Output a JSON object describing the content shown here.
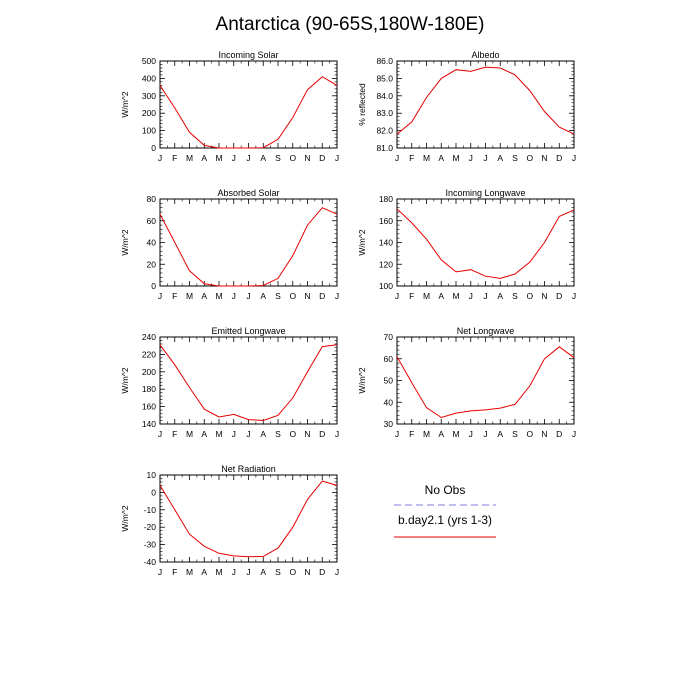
{
  "title": "Antarctica (90-65S,180W-180E)",
  "month_labels": [
    "J",
    "F",
    "M",
    "A",
    "M",
    "J",
    "J",
    "A",
    "S",
    "O",
    "N",
    "D",
    "J"
  ],
  "legend": {
    "entries": [
      {
        "label": "No Obs",
        "color": "#7b7bdc",
        "dash": true
      },
      {
        "label": "b.day2.1 (yrs 1-3)",
        "color": "#e60000",
        "dash": false
      }
    ]
  },
  "chart_data": [
    {
      "type": "line",
      "title": "Incoming Solar",
      "ylabel": "W/m^2",
      "ylim": [
        0,
        500
      ],
      "yticks": [
        0,
        100,
        200,
        300,
        400,
        500
      ],
      "ytick_labels": [
        "0",
        "100",
        "200",
        "300",
        "400",
        "500"
      ],
      "series": [
        {
          "color": "#e60000",
          "values": [
            360,
            230,
            90,
            15,
            0,
            0,
            0,
            2,
            50,
            175,
            335,
            410,
            360
          ]
        }
      ]
    },
    {
      "type": "line",
      "title": "Albedo",
      "ylabel": "% reflected",
      "ylim": [
        81,
        86
      ],
      "yticks": [
        81,
        82,
        83,
        84,
        85,
        86
      ],
      "ytick_labels": [
        "81.0",
        "82.0",
        "83.0",
        "84.0",
        "85.0",
        "86.0"
      ],
      "series": [
        {
          "color": "#e60000",
          "values": [
            81.8,
            82.5,
            83.9,
            85.0,
            85.5,
            85.4,
            85.65,
            85.6,
            85.2,
            84.3,
            83.1,
            82.2,
            81.8
          ]
        }
      ]
    },
    {
      "type": "line",
      "title": "Absorbed Solar",
      "ylabel": "W/m^2",
      "ylim": [
        0,
        80
      ],
      "yticks": [
        0,
        20,
        40,
        60,
        80
      ],
      "ytick_labels": [
        "0",
        "20",
        "40",
        "60",
        "80"
      ],
      "series": [
        {
          "color": "#e60000",
          "values": [
            66,
            40,
            14,
            2,
            0,
            0,
            0,
            0.5,
            7,
            28,
            56,
            72,
            66
          ]
        }
      ]
    },
    {
      "type": "line",
      "title": "Incoming Longwave",
      "ylabel": "W/m^2",
      "ylim": [
        100,
        180
      ],
      "yticks": [
        100,
        120,
        140,
        160,
        180
      ],
      "ytick_labels": [
        "100",
        "120",
        "140",
        "160",
        "180"
      ],
      "series": [
        {
          "color": "#e60000",
          "values": [
            171,
            158,
            143,
            124,
            113,
            115,
            109,
            107,
            111,
            122,
            140,
            164,
            170
          ]
        }
      ]
    },
    {
      "type": "line",
      "title": "Emitted Longwave",
      "ylabel": "W/m^2",
      "ylim": [
        140,
        240
      ],
      "yticks": [
        140,
        160,
        180,
        200,
        220,
        240
      ],
      "ytick_labels": [
        "140",
        "160",
        "180",
        "200",
        "220",
        "240"
      ],
      "series": [
        {
          "color": "#e60000",
          "values": [
            231,
            208,
            182,
            157,
            148,
            151,
            145,
            144,
            150,
            170,
            200,
            229,
            231
          ]
        }
      ]
    },
    {
      "type": "line",
      "title": "Net Longwave",
      "ylabel": "W/m^2",
      "ylim": [
        30,
        70
      ],
      "yticks": [
        30,
        40,
        50,
        60,
        70
      ],
      "ytick_labels": [
        "30",
        "40",
        "50",
        "60",
        "70"
      ],
      "series": [
        {
          "color": "#e60000",
          "values": [
            61,
            49,
            37.5,
            33,
            35,
            36,
            36.5,
            37.3,
            39,
            47.5,
            60,
            65.5,
            60.5
          ]
        }
      ]
    },
    {
      "type": "line",
      "title": "Net Radiation",
      "ylabel": "W/m^2",
      "ylim": [
        -40,
        10
      ],
      "yticks": [
        -40,
        -30,
        -20,
        -10,
        0,
        10
      ],
      "ytick_labels": [
        "-40",
        "-30",
        "-20",
        "-10",
        "0",
        "10"
      ],
      "series": [
        {
          "color": "#e60000",
          "values": [
            4,
            -10,
            -24,
            -31,
            -35,
            -36.5,
            -37,
            -36.8,
            -32,
            -20,
            -4,
            6.5,
            4
          ]
        }
      ]
    }
  ]
}
